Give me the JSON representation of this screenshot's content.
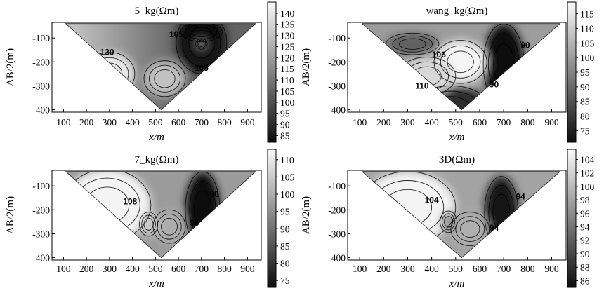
{
  "chart_data": [
    {
      "type": "heatmap",
      "title": "5_kg(Ωm)",
      "xlabel": "x/m",
      "ylabel": "AB/2(m)",
      "xticks": [
        100,
        200,
        300,
        400,
        500,
        600,
        700,
        800,
        900
      ],
      "yticks": [
        -100,
        -200,
        -300,
        -400
      ],
      "xlim": [
        50,
        960
      ],
      "ylim": [
        -410,
        -35
      ],
      "colorbar": {
        "min": 82,
        "max": 145,
        "ticks": [
          85,
          90,
          95,
          100,
          105,
          110,
          115,
          120,
          125,
          130,
          135,
          140
        ]
      },
      "contour_labels": [
        {
          "text": "130",
          "x": 290,
          "y": -160
        },
        {
          "text": "105",
          "x": 590,
          "y": -85
        },
        {
          "text": "105",
          "x": 700,
          "y": -225
        }
      ],
      "features": [
        {
          "x": 300,
          "y": -250,
          "value": 140,
          "rx": 110,
          "ry": 90
        },
        {
          "x": 540,
          "y": -270,
          "value": 130,
          "rx": 90,
          "ry": 75
        },
        {
          "x": 700,
          "y": -120,
          "value": 85,
          "rx": 110,
          "ry": 130
        },
        {
          "x": 700,
          "y": -75,
          "value": 82,
          "rx": 90,
          "ry": 40
        },
        {
          "x": 700,
          "y": -125,
          "value": 108,
          "rx": 25,
          "ry": 22
        }
      ],
      "background": 112,
      "gradient": {
        "from": 130,
        "to": 105,
        "xstart": 150,
        "xend": 600
      }
    },
    {
      "type": "heatmap",
      "title": "wang_kg(Ωm)",
      "xlabel": "x/m",
      "ylabel": "AB/2(m)",
      "xticks": [
        100,
        200,
        300,
        400,
        500,
        600,
        700,
        800,
        900
      ],
      "yticks": [
        -100,
        -200,
        -300,
        -400
      ],
      "xlim": [
        50,
        960
      ],
      "ylim": [
        -410,
        -35
      ],
      "colorbar": {
        "min": 71,
        "max": 119,
        "ticks": [
          75,
          80,
          85,
          90,
          95,
          100,
          105,
          110,
          115
        ]
      },
      "contour_labels": [
        {
          "text": "106",
          "x": 430,
          "y": -170
        },
        {
          "text": "110",
          "x": 360,
          "y": -300
        },
        {
          "text": "90",
          "x": 790,
          "y": -130
        },
        {
          "text": "90",
          "x": 660,
          "y": -295
        }
      ],
      "features": [
        {
          "x": 320,
          "y": -125,
          "value": 88,
          "rx": 110,
          "ry": 45
        },
        {
          "x": 700,
          "y": -210,
          "value": 72,
          "rx": 85,
          "ry": 170
        },
        {
          "x": 480,
          "y": -390,
          "value": 78,
          "rx": 160,
          "ry": 90
        },
        {
          "x": 520,
          "y": -200,
          "value": 118,
          "rx": 110,
          "ry": 90
        },
        {
          "x": 380,
          "y": -260,
          "value": 112,
          "rx": 120,
          "ry": 80
        }
      ],
      "background": 100,
      "gradient": null
    },
    {
      "type": "heatmap",
      "title": "7_kg(Ωm)",
      "xlabel": "x/m",
      "ylabel": "AB/2(m)",
      "xticks": [
        100,
        200,
        300,
        400,
        500,
        600,
        700,
        800,
        900
      ],
      "yticks": [
        -100,
        -200,
        -300,
        -400
      ],
      "xlim": [
        50,
        960
      ],
      "ylim": [
        -410,
        -35
      ],
      "colorbar": {
        "min": 73,
        "max": 113,
        "ticks": [
          75,
          80,
          85,
          90,
          95,
          100,
          105,
          110
        ]
      },
      "contour_labels": [
        {
          "text": "108",
          "x": 390,
          "y": -165
        },
        {
          "text": "90",
          "x": 670,
          "y": -255
        },
        {
          "text": "90",
          "x": 755,
          "y": -135
        }
      ],
      "features": [
        {
          "x": 290,
          "y": -180,
          "value": 112,
          "rx": 190,
          "ry": 150
        },
        {
          "x": 705,
          "y": -200,
          "value": 73,
          "rx": 75,
          "ry": 160
        },
        {
          "x": 560,
          "y": -270,
          "value": 100,
          "rx": 70,
          "ry": 70
        },
        {
          "x": 470,
          "y": -260,
          "value": 105,
          "rx": 40,
          "ry": 50
        }
      ],
      "background": 97,
      "gradient": null
    },
    {
      "type": "heatmap",
      "title": "3D(Ωm)",
      "xlabel": "x/m",
      "ylabel": "AB/2(m)",
      "xticks": [
        100,
        200,
        300,
        400,
        500,
        600,
        700,
        800,
        900
      ],
      "yticks": [
        -100,
        -200,
        -300,
        -400
      ],
      "xlim": [
        50,
        960
      ],
      "ylim": [
        -410,
        -35
      ],
      "colorbar": {
        "min": 85,
        "max": 105.5,
        "ticks": [
          86,
          88,
          90,
          92,
          94,
          96,
          98,
          100,
          102,
          104
        ]
      },
      "contour_labels": [
        {
          "text": "104",
          "x": 400,
          "y": -160
        },
        {
          "text": "94",
          "x": 770,
          "y": -145
        },
        {
          "text": "94",
          "x": 660,
          "y": -275
        }
      ],
      "features": [
        {
          "x": 300,
          "y": -190,
          "value": 105,
          "rx": 200,
          "ry": 150
        },
        {
          "x": 690,
          "y": -210,
          "value": 86,
          "rx": 70,
          "ry": 150
        },
        {
          "x": 560,
          "y": -280,
          "value": 99,
          "rx": 80,
          "ry": 70
        },
        {
          "x": 470,
          "y": -250,
          "value": 97,
          "rx": 35,
          "ry": 45
        }
      ],
      "background": 98,
      "gradient": null
    }
  ]
}
